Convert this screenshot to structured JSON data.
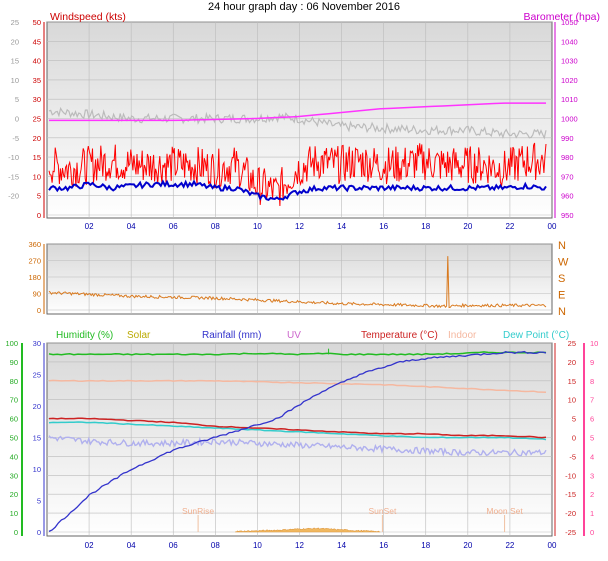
{
  "title": "24 hour graph day : 06 November 2016",
  "x_ticks": [
    "02",
    "04",
    "06",
    "08",
    "10",
    "12",
    "14",
    "16",
    "18",
    "20",
    "22",
    "00"
  ],
  "colors": {
    "wind": "#ff0000",
    "wind_avg": "#0000cc",
    "temp_gray": "#bbbbbb",
    "baro": "#ff33ff",
    "winddir": "#d97a1f",
    "humidity": "#22bb22",
    "solar": "#bbaa00",
    "rainfall": "#3333cc",
    "uv": "#cc66cc",
    "temperature": "#cc2222",
    "indoor": "#f5b8a0",
    "dewpoint": "#33cccc",
    "solar_fill": "#f0b860"
  },
  "chart_data": [
    {
      "type": "line",
      "title": "24 hour graph day : 06 November 2016",
      "left_axis_label": "Windspeed (kts)",
      "right_axis_label": "Barometer (hpa)",
      "left_ticks_outer": [
        "25",
        "20",
        "15",
        "10",
        "5",
        "0",
        "-5",
        "-10",
        "-15",
        "-20"
      ],
      "left_ticks_inner": [
        "50",
        "45",
        "40",
        "35",
        "30",
        "25",
        "20",
        "15",
        "10",
        "5",
        "0"
      ],
      "right_ticks": [
        "1050",
        "1040",
        "1030",
        "1020",
        "1010",
        "1000",
        "990",
        "980",
        "970",
        "960",
        "950"
      ],
      "x_hours": [
        0,
        24
      ],
      "series": [
        {
          "key": "wind_gust",
          "points": [
            [
              0,
              13
            ],
            [
              1,
              12
            ],
            [
              2,
              13
            ],
            [
              3,
              14
            ],
            [
              4,
              13
            ],
            [
              5,
              13
            ],
            [
              6,
              13
            ],
            [
              7,
              13
            ],
            [
              8,
              12
            ],
            [
              9,
              13
            ],
            [
              10,
              8
            ],
            [
              11,
              6
            ],
            [
              12,
              12
            ],
            [
              13,
              14
            ],
            [
              14,
              13
            ],
            [
              15,
              14
            ],
            [
              16,
              13
            ],
            [
              17,
              13
            ],
            [
              18,
              14
            ],
            [
              19,
              13
            ],
            [
              20,
              13
            ],
            [
              21,
              13
            ],
            [
              22,
              12
            ],
            [
              23,
              14
            ],
            [
              24,
              14
            ]
          ]
        },
        {
          "key": "wind_avg",
          "points": [
            [
              0,
              7
            ],
            [
              1,
              7
            ],
            [
              2,
              8
            ],
            [
              3,
              7
            ],
            [
              4,
              7.5
            ],
            [
              5,
              8
            ],
            [
              6,
              8
            ],
            [
              7,
              8
            ],
            [
              8,
              7
            ],
            [
              9,
              7
            ],
            [
              10,
              5
            ],
            [
              11,
              4
            ],
            [
              12,
              6
            ],
            [
              13,
              7
            ],
            [
              14,
              7
            ],
            [
              15,
              7
            ],
            [
              16,
              7
            ],
            [
              17,
              7
            ],
            [
              18,
              7
            ],
            [
              19,
              7
            ],
            [
              20,
              7
            ],
            [
              21,
              7
            ],
            [
              22,
              7
            ],
            [
              23,
              7.5
            ],
            [
              24,
              7
            ]
          ]
        },
        {
          "key": "gray_line",
          "points": [
            [
              0,
              27
            ],
            [
              2,
              26
            ],
            [
              4,
              25
            ],
            [
              6,
              25
            ],
            [
              8,
              25
            ],
            [
              10,
              25
            ],
            [
              11,
              25.5
            ],
            [
              12,
              25
            ],
            [
              13,
              24
            ],
            [
              14,
              23
            ],
            [
              16,
              22.5
            ],
            [
              18,
              22
            ],
            [
              20,
              22
            ],
            [
              22,
              21
            ],
            [
              24,
              21
            ]
          ]
        },
        {
          "key": "barometer",
          "points": [
            [
              0,
              999
            ],
            [
              2,
              999
            ],
            [
              4,
              999
            ],
            [
              6,
              999
            ],
            [
              8,
              999.5
            ],
            [
              10,
              1000
            ],
            [
              12,
              1001
            ],
            [
              14,
              1003
            ],
            [
              16,
              1005
            ],
            [
              18,
              1006
            ],
            [
              20,
              1007
            ],
            [
              22,
              1008
            ],
            [
              24,
              1008
            ]
          ]
        }
      ]
    },
    {
      "type": "scatter",
      "left_ticks": [
        "360",
        "270",
        "180",
        "90",
        "0"
      ],
      "right_labels": [
        "N",
        "W",
        "S",
        "E",
        "N"
      ],
      "series": [
        {
          "key": "wind_direction",
          "points": [
            [
              0,
              95
            ],
            [
              2,
              85
            ],
            [
              4,
              75
            ],
            [
              6,
              70
            ],
            [
              8,
              65
            ],
            [
              10,
              55
            ],
            [
              12,
              45
            ],
            [
              14,
              35
            ],
            [
              16,
              30
            ],
            [
              18,
              25
            ],
            [
              19.2,
              20
            ],
            [
              19.25,
              360
            ],
            [
              19.3,
              20
            ],
            [
              20,
              25
            ],
            [
              22,
              25
            ],
            [
              24,
              25
            ]
          ]
        }
      ]
    },
    {
      "type": "line",
      "legend": [
        "Humidity (%)",
        "Solar",
        "Rainfall (mm)",
        "UV",
        "Temperature (°C)",
        "Indoor",
        "Dew Point (°C)"
      ],
      "humidity_ticks": [
        "100",
        "90",
        "80",
        "70",
        "60",
        "50",
        "40",
        "30",
        "20",
        "10",
        "0"
      ],
      "rainfall_ticks": [
        "30",
        "25",
        "20",
        "15",
        "10",
        "5",
        "0"
      ],
      "temperature_ticks": [
        "25",
        "20",
        "15",
        "10",
        "5",
        "0",
        "-5",
        "-10",
        "-15",
        "-20",
        "-25"
      ],
      "uv_ticks": [
        "10",
        "9",
        "8",
        "7",
        "6",
        "5",
        "4",
        "3",
        "2",
        "1",
        "0"
      ],
      "annotations": [
        "SunRise",
        "SunSet",
        "Moon Set"
      ],
      "series": [
        {
          "key": "humidity",
          "points": [
            [
              0,
              94
            ],
            [
              4,
              94
            ],
            [
              8,
              94
            ],
            [
              10,
              94.5
            ],
            [
              12,
              94
            ],
            [
              13.5,
              94.5
            ],
            [
              14,
              94
            ],
            [
              18,
              94
            ],
            [
              20,
              94.5
            ],
            [
              21,
              95
            ],
            [
              24,
              95
            ]
          ]
        },
        {
          "key": "rainfall",
          "points": [
            [
              0,
              0
            ],
            [
              1,
              3
            ],
            [
              2,
              6
            ],
            [
              3,
              8
            ],
            [
              4,
              10
            ],
            [
              5,
              11.5
            ],
            [
              6,
              13
            ],
            [
              7,
              14
            ],
            [
              8,
              15
            ],
            [
              9,
              16
            ],
            [
              10,
              17
            ],
            [
              11,
              18
            ],
            [
              12,
              20
            ],
            [
              13,
              22
            ],
            [
              14,
              23.5
            ],
            [
              15,
              25
            ],
            [
              16,
              26
            ],
            [
              17,
              27
            ],
            [
              18,
              27.5
            ],
            [
              20,
              28
            ],
            [
              22,
              28.5
            ],
            [
              24,
              28.5
            ]
          ]
        },
        {
          "key": "temperature",
          "points": [
            [
              0,
              5
            ],
            [
              2,
              5
            ],
            [
              4,
              4.5
            ],
            [
              6,
              4
            ],
            [
              8,
              3
            ],
            [
              10,
              2.5
            ],
            [
              12,
              2
            ],
            [
              14,
              1.5
            ],
            [
              16,
              1
            ],
            [
              18,
              1
            ],
            [
              20,
              0.5
            ],
            [
              22,
              0.5
            ],
            [
              24,
              0
            ]
          ]
        },
        {
          "key": "indoor",
          "points": [
            [
              0,
              15
            ],
            [
              4,
              15
            ],
            [
              8,
              15
            ],
            [
              12,
              14.5
            ],
            [
              16,
              14
            ],
            [
              20,
              13
            ],
            [
              24,
              12
            ]
          ]
        },
        {
          "key": "dewpoint",
          "points": [
            [
              0,
              4
            ],
            [
              2,
              4
            ],
            [
              4,
              3.5
            ],
            [
              6,
              3
            ],
            [
              8,
              2.5
            ],
            [
              10,
              2
            ],
            [
              12,
              1.5
            ],
            [
              14,
              1
            ],
            [
              16,
              0.5
            ],
            [
              18,
              0
            ],
            [
              20,
              0
            ],
            [
              22,
              0
            ],
            [
              24,
              -0.5
            ]
          ]
        },
        {
          "key": "gray_dew",
          "points": [
            [
              0,
              0
            ],
            [
              2,
              -1
            ],
            [
              4,
              -1.5
            ],
            [
              6,
              -1.5
            ],
            [
              8,
              -1
            ],
            [
              10,
              -1.5
            ],
            [
              12,
              -2
            ],
            [
              14,
              -2.5
            ],
            [
              16,
              -3
            ],
            [
              18,
              -3.5
            ],
            [
              20,
              -4
            ],
            [
              22,
              -4
            ],
            [
              24,
              -4
            ]
          ]
        },
        {
          "key": "solar",
          "points": [
            [
              9,
              0
            ],
            [
              10,
              5
            ],
            [
              11,
              10
            ],
            [
              12,
              20
            ],
            [
              13,
              25
            ],
            [
              13.5,
              20
            ],
            [
              14,
              15
            ],
            [
              15,
              5
            ],
            [
              16,
              0
            ]
          ]
        }
      ]
    }
  ]
}
